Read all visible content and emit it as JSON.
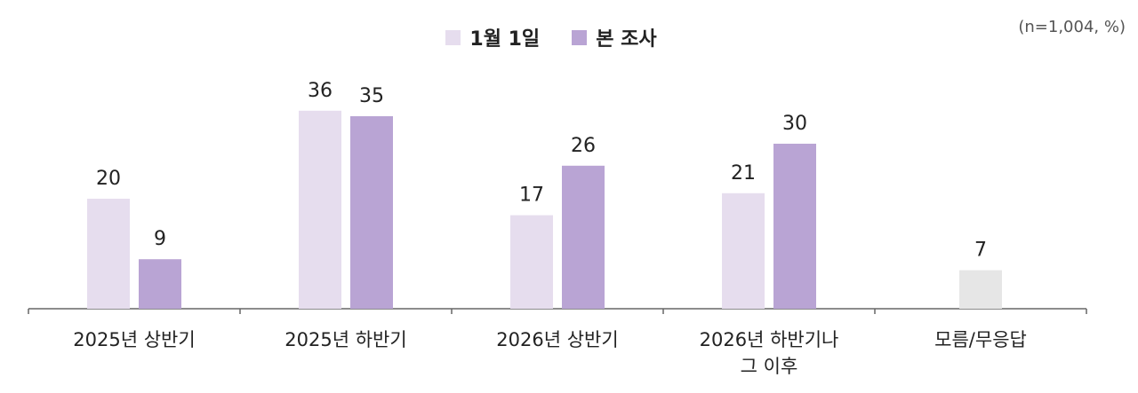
{
  "note": "(n=1,004, %)",
  "colors": {
    "series1": "#e6ddee",
    "series2": "#b9a4d4",
    "na": "#e6e6e6",
    "axis": "#666666"
  },
  "chart_data": {
    "type": "bar",
    "categories": [
      [
        "2025년 상반기"
      ],
      [
        "2025년 하반기"
      ],
      [
        "2026년 상반기"
      ],
      [
        "2026년 하반기나",
        "그 이후"
      ],
      [
        "모름/무응답"
      ]
    ],
    "series": [
      {
        "name": "1월 1일",
        "values": [
          20,
          36,
          17,
          21,
          null
        ]
      },
      {
        "name": "본 조사",
        "values": [
          9,
          35,
          26,
          30,
          null
        ]
      }
    ],
    "single_values": [
      null,
      null,
      null,
      null,
      7
    ],
    "ylim": [
      0,
      40
    ],
    "grid": false,
    "legend": "top-center"
  }
}
